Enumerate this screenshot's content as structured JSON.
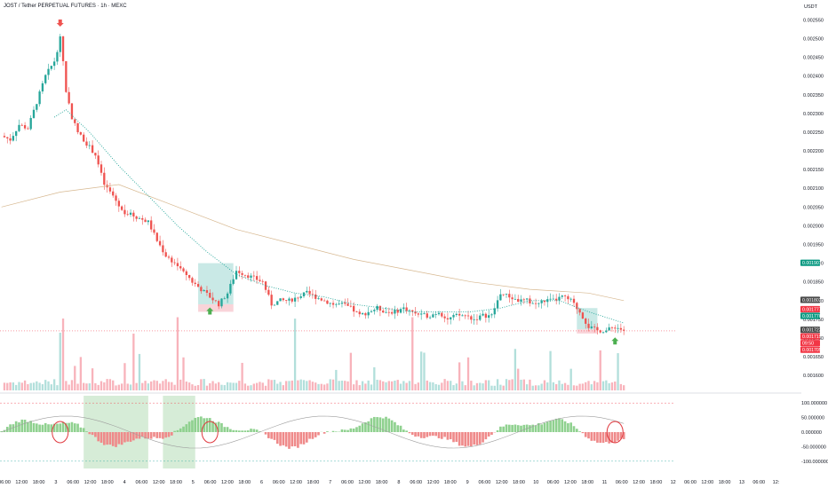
{
  "header": {
    "title": "JOST / Tether PERPETUAL FUTURES · 1h · MEXC",
    "quote_currency": "USDT"
  },
  "colors": {
    "up": "#26a69a",
    "down": "#ef5350",
    "vol_up": "#b2dfdb",
    "vol_down": "#f8b3bb",
    "ma_slow": "#d7b890",
    "trail": "#26a69a",
    "hist_up": "#8fd18f",
    "hist_down": "#ef8a8a",
    "zone": "#c8e6c9"
  },
  "chart_data": [
    {
      "type": "candlestick",
      "price_axis_ticks": [
        "0.002550",
        "0.002500",
        "0.002450",
        "0.002400",
        "0.002350",
        "0.002300",
        "0.002250",
        "0.002200",
        "0.002150",
        "0.002100",
        "0.002050",
        "0.002000",
        "0.001950",
        "0.001900",
        "0.001850",
        "0.001800",
        "0.001750",
        "0.001700",
        "0.001650",
        "0.001600"
      ],
      "ylim": [
        0.00156,
        0.00257
      ],
      "time_axis_ticks": [
        "06:00",
        "12:00",
        "18:00",
        "3",
        "06:00",
        "12:00",
        "18:00",
        "4",
        "06:00",
        "12:00",
        "18:00",
        "5",
        "06:00",
        "12:00",
        "18:00",
        "6",
        "06:00",
        "12:00",
        "18:00",
        "7",
        "06:00",
        "12:00",
        "18:00",
        "8",
        "06:00",
        "12:00",
        "18:00",
        "9",
        "06:00",
        "12:00",
        "18:00",
        "10",
        "06:00",
        "12:00",
        "18:00",
        "11",
        "06:00",
        "12:00",
        "18:00",
        "12",
        "06:00",
        "12:00",
        "18:00",
        "13",
        "06:00",
        "12:"
      ],
      "close_path": [
        [
          0,
          0.00224
        ],
        [
          3,
          0.00223
        ],
        [
          6,
          0.00227
        ],
        [
          9,
          0.00226
        ],
        [
          12,
          0.00233
        ],
        [
          15,
          0.0024
        ],
        [
          18,
          0.00244
        ],
        [
          20,
          0.0025
        ],
        [
          21,
          0.00244
        ],
        [
          22,
          0.00236
        ],
        [
          24,
          0.00229
        ],
        [
          26,
          0.00225
        ],
        [
          29,
          0.00222
        ],
        [
          32,
          0.00219
        ],
        [
          35,
          0.00211
        ],
        [
          38,
          0.00208
        ],
        [
          41,
          0.00204
        ],
        [
          44,
          0.00203
        ],
        [
          47,
          0.00202
        ],
        [
          50,
          0.00201
        ],
        [
          53,
          0.00196
        ],
        [
          56,
          0.00192
        ],
        [
          59,
          0.0019
        ],
        [
          62,
          0.00188
        ],
        [
          65,
          0.00185
        ],
        [
          68,
          0.00183
        ],
        [
          71,
          0.00181
        ],
        [
          74,
          0.00179
        ],
        [
          77,
          0.00182
        ],
        [
          80,
          0.00188
        ],
        [
          83,
          0.00187
        ],
        [
          86,
          0.00186
        ],
        [
          89,
          0.00185
        ],
        [
          92,
          0.00179
        ],
        [
          95,
          0.0018
        ],
        [
          98,
          0.0018
        ],
        [
          101,
          0.00181
        ],
        [
          104,
          0.00182
        ],
        [
          107,
          0.00181
        ],
        [
          110,
          0.0018
        ],
        [
          113,
          0.00179
        ],
        [
          116,
          0.00179
        ],
        [
          119,
          0.00178
        ],
        [
          122,
          0.00176
        ],
        [
          125,
          0.00177
        ],
        [
          128,
          0.00178
        ],
        [
          131,
          0.00177
        ],
        [
          134,
          0.00177
        ],
        [
          137,
          0.00178
        ],
        [
          140,
          0.00177
        ],
        [
          143,
          0.00176
        ],
        [
          146,
          0.00176
        ],
        [
          149,
          0.00177
        ],
        [
          152,
          0.00175
        ],
        [
          155,
          0.00176
        ],
        [
          158,
          0.00176
        ],
        [
          161,
          0.00175
        ],
        [
          164,
          0.00176
        ],
        [
          167,
          0.00176
        ],
        [
          170,
          0.00182
        ],
        [
          173,
          0.00181
        ],
        [
          176,
          0.0018
        ],
        [
          179,
          0.0018
        ],
        [
          182,
          0.00179
        ],
        [
          185,
          0.0018
        ],
        [
          188,
          0.0018
        ],
        [
          191,
          0.00181
        ],
        [
          194,
          0.0018
        ],
        [
          197,
          0.00177
        ],
        [
          200,
          0.00173
        ],
        [
          203,
          0.00172
        ],
        [
          206,
          0.00172
        ],
        [
          209,
          0.00173
        ],
        [
          212,
          0.00172
        ]
      ],
      "indicators": {
        "ma_slow": [
          [
            0,
            0.00205
          ],
          [
            20,
            0.00209
          ],
          [
            40,
            0.00211
          ],
          [
            60,
            0.00205
          ],
          [
            80,
            0.00199
          ],
          [
            100,
            0.00195
          ],
          [
            120,
            0.00191
          ],
          [
            140,
            0.00188
          ],
          [
            160,
            0.00185
          ],
          [
            180,
            0.00183
          ],
          [
            200,
            0.00182
          ],
          [
            212,
            0.0018
          ]
        ],
        "trail_stop": [
          [
            18,
            0.00229
          ],
          [
            22,
            0.00231
          ],
          [
            30,
            0.00225
          ],
          [
            40,
            0.00216
          ],
          [
            50,
            0.00208
          ],
          [
            60,
            0.002
          ],
          [
            70,
            0.00193
          ],
          [
            80,
            0.00187
          ],
          [
            90,
            0.00184
          ],
          [
            100,
            0.00182
          ],
          [
            110,
            0.00181
          ],
          [
            120,
            0.00179
          ],
          [
            130,
            0.00178
          ],
          [
            140,
            0.00177
          ],
          [
            150,
            0.00177
          ],
          [
            160,
            0.00177
          ],
          [
            170,
            0.00178
          ],
          [
            180,
            0.0018
          ],
          [
            190,
            0.0018
          ],
          [
            200,
            0.00177
          ],
          [
            212,
            0.00174
          ]
        ]
      },
      "price_tags": [
        {
          "value": "0.001901",
          "color": "#089981",
          "price": 0.001901
        },
        {
          "value": "0.001802",
          "color": "#4a4a4a",
          "price": 0.001802
        },
        {
          "value": "0.001777",
          "color": "#f23645",
          "price": 0.001777
        },
        {
          "value": "0.001776",
          "color": "#089981",
          "price": 0.001776
        },
        {
          "value": "0.001722",
          "color": "#4a4a4a",
          "price": 0.001722
        },
        {
          "value": "0.001719",
          "color": "#f23645",
          "price": 0.001719
        },
        {
          "value": "09:50",
          "color": "#f23645",
          "price": 0.001709
        },
        {
          "value": "0.001705",
          "color": "#f23645",
          "price": 0.001697
        }
      ],
      "signal_arrows": [
        {
          "bar": 20,
          "dir": "down"
        },
        {
          "bar": 71,
          "dir": "up"
        },
        {
          "bar": 209,
          "dir": "up"
        }
      ]
    },
    {
      "type": "bar",
      "name": "oscillator-histogram",
      "axis_ticks": [
        "100.000000",
        "50.000000",
        "0.000000",
        "-50.000000",
        "-100.000000"
      ],
      "ylim": [
        -125,
        125
      ]
    }
  ]
}
